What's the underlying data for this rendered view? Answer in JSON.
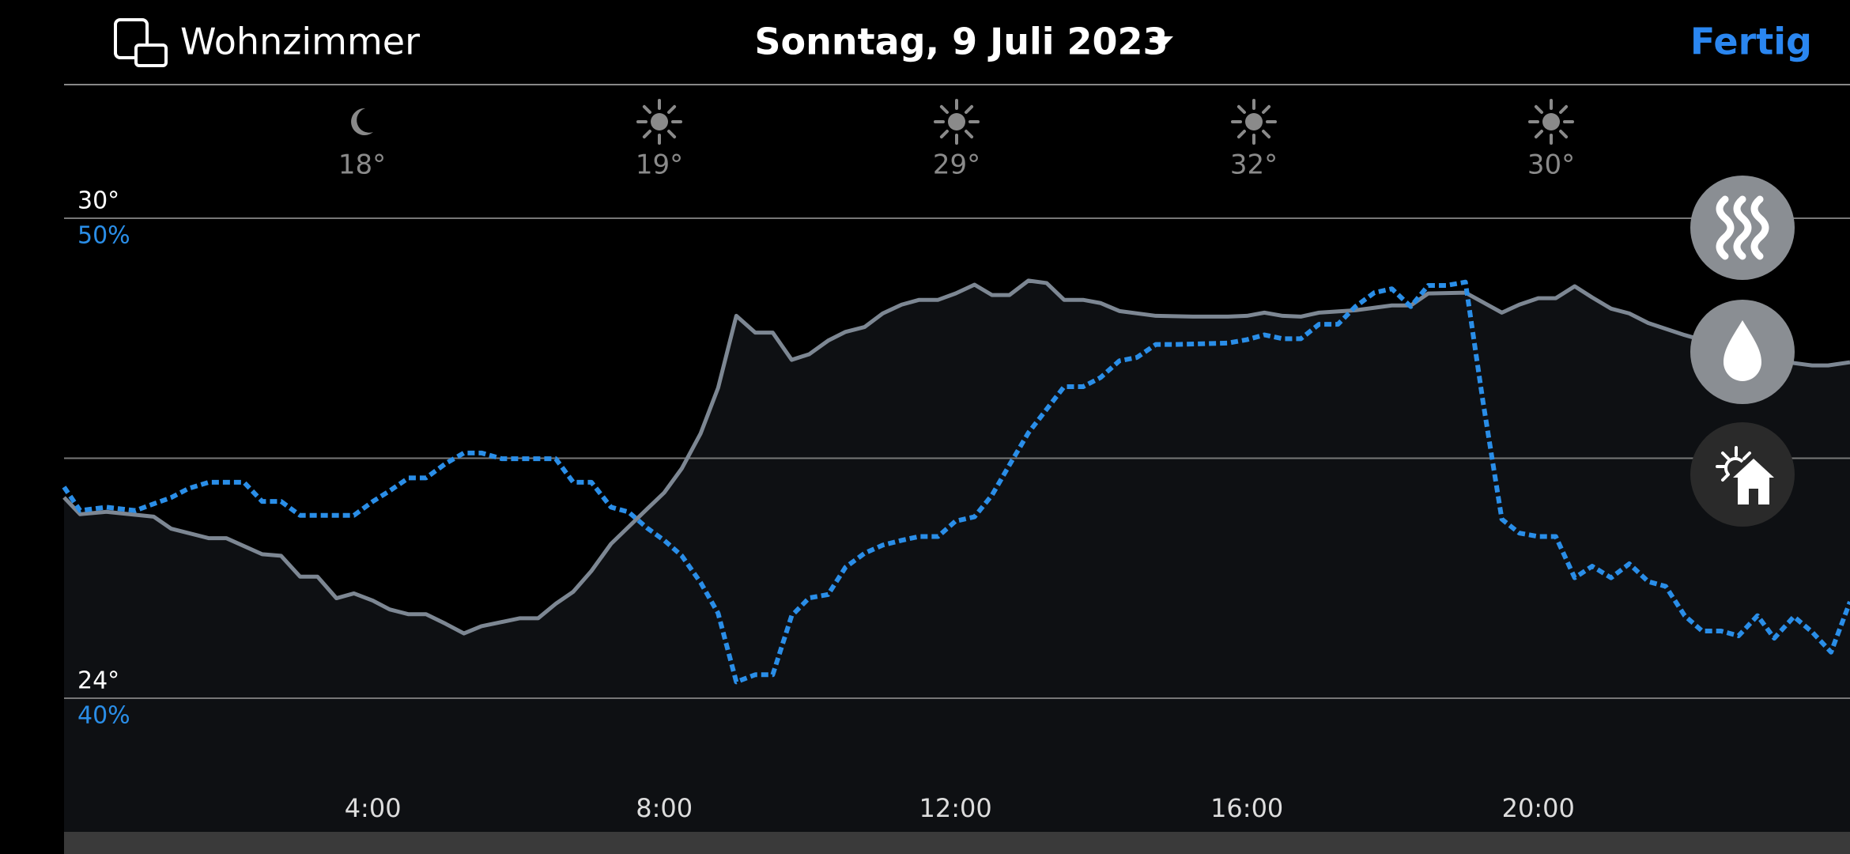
{
  "header": {
    "room": "Wohnzimmer",
    "date": "Sonntag, 9 Juli 2023",
    "done": "Fertig"
  },
  "forecast": [
    {
      "icon": "moon",
      "temp": "18°"
    },
    {
      "icon": "sun",
      "temp": "19°"
    },
    {
      "icon": "sun",
      "temp": "29°"
    },
    {
      "icon": "sun",
      "temp": "32°"
    },
    {
      "icon": "sun",
      "temp": "30°"
    }
  ],
  "chart_data": {
    "type": "line",
    "xlim": [
      -0.24,
      24.28
    ],
    "xticks": [
      {
        "value": 4,
        "label": "4:00"
      },
      {
        "value": 8,
        "label": "8:00"
      },
      {
        "value": 12,
        "label": "12:00"
      },
      {
        "value": 16,
        "label": "16:00"
      },
      {
        "value": 20,
        "label": "20:00"
      }
    ],
    "ylim": [
      24,
      30
    ],
    "yticks": [
      {
        "value": 24,
        "label": "24°"
      },
      {
        "value": 27,
        "label": null
      },
      {
        "value": 30,
        "label": "30°"
      }
    ],
    "y2lim": [
      40,
      50
    ],
    "y2ticks": [
      {
        "value": 40,
        "label": "40%"
      },
      {
        "value": 50,
        "label": "50%"
      }
    ],
    "grid": true,
    "series": [
      {
        "color": "#7d8793",
        "area": true,
        "x": [
          -0.24,
          -0.02,
          0.34,
          0.99,
          1.23,
          1.75,
          1.99,
          2.48,
          2.74,
          3.0,
          3.24,
          3.5,
          3.74,
          4.0,
          4.23,
          4.49,
          4.73,
          5.0,
          5.25,
          5.49,
          6.02,
          6.27,
          6.51,
          6.75,
          7.0,
          7.27,
          7.77,
          8.0,
          8.24,
          8.5,
          8.74,
          8.99,
          9.25,
          9.49,
          9.75,
          9.99,
          10.25,
          10.49,
          10.75,
          11.0,
          11.26,
          11.5,
          11.76,
          12.0,
          12.26,
          12.5,
          12.74,
          13.0,
          13.25,
          13.49,
          13.75,
          13.99,
          14.25,
          14.75,
          15.26,
          15.74,
          16.0,
          16.24,
          16.49,
          16.74,
          16.99,
          17.49,
          17.99,
          18.25,
          18.49,
          19.0,
          19.24,
          19.5,
          19.74,
          20.0,
          20.24,
          20.5,
          20.74,
          21.0,
          21.25,
          21.51,
          22.01,
          22.51,
          23.01,
          23.51,
          23.76,
          23.98,
          24.28
        ],
        "values": [
          26.51,
          26.3,
          26.33,
          26.27,
          26.12,
          26.0,
          26.0,
          25.8,
          25.78,
          25.52,
          25.52,
          25.25,
          25.31,
          25.22,
          25.11,
          25.05,
          25.05,
          24.93,
          24.81,
          24.9,
          25.0,
          25.0,
          25.18,
          25.33,
          25.59,
          25.93,
          26.37,
          26.57,
          26.87,
          27.31,
          27.88,
          28.78,
          28.57,
          28.57,
          28.23,
          28.3,
          28.47,
          28.58,
          28.64,
          28.81,
          28.92,
          28.98,
          28.98,
          29.06,
          29.17,
          29.04,
          29.04,
          29.22,
          29.19,
          28.98,
          28.98,
          28.94,
          28.84,
          28.78,
          28.77,
          28.77,
          28.78,
          28.82,
          28.78,
          28.77,
          28.82,
          28.85,
          28.91,
          28.91,
          29.06,
          29.07,
          28.95,
          28.82,
          28.92,
          29.0,
          29.0,
          29.15,
          29.01,
          28.87,
          28.81,
          28.69,
          28.54,
          28.41,
          28.35,
          28.19,
          28.16,
          28.16,
          28.2
        ]
      },
      {
        "color": "#2a8ee8",
        "axis": "y2",
        "dashed": true,
        "x": [
          -0.24,
          -0.02,
          0.34,
          0.74,
          0.99,
          1.23,
          1.47,
          1.75,
          2.23,
          2.48,
          2.74,
          3.0,
          3.74,
          4.0,
          4.23,
          4.49,
          4.73,
          5.0,
          5.25,
          5.49,
          5.77,
          6.51,
          6.75,
          7.0,
          7.27,
          7.51,
          7.77,
          8.0,
          8.24,
          8.5,
          8.74,
          8.99,
          9.25,
          9.49,
          9.75,
          9.99,
          10.25,
          10.49,
          10.75,
          11.0,
          11.26,
          11.5,
          11.76,
          12.0,
          12.26,
          12.5,
          12.74,
          13.0,
          13.25,
          13.49,
          13.75,
          13.99,
          14.25,
          14.49,
          14.75,
          15.0,
          15.74,
          16.0,
          16.24,
          16.49,
          16.74,
          16.99,
          17.25,
          17.49,
          17.75,
          17.99,
          18.25,
          18.49,
          18.74,
          19.0,
          19.24,
          19.5,
          19.74,
          20.0,
          20.24,
          20.5,
          20.74,
          21.0,
          21.25,
          21.51,
          21.75,
          22.01,
          22.25,
          22.51,
          22.75,
          23.01,
          23.24,
          23.51,
          23.76,
          24.02,
          24.28
        ],
        "values": [
          44.4,
          43.91,
          43.98,
          43.91,
          44.05,
          44.18,
          44.37,
          44.5,
          44.5,
          44.1,
          44.1,
          43.81,
          43.81,
          44.1,
          44.32,
          44.59,
          44.59,
          44.89,
          45.11,
          45.11,
          44.99,
          44.99,
          44.5,
          44.5,
          43.98,
          43.88,
          43.54,
          43.29,
          42.97,
          42.41,
          41.77,
          40.34,
          40.49,
          40.49,
          41.72,
          42.09,
          42.16,
          42.73,
          43.02,
          43.19,
          43.29,
          43.37,
          43.37,
          43.69,
          43.78,
          44.23,
          44.86,
          45.53,
          46.02,
          46.49,
          46.49,
          46.68,
          47.03,
          47.1,
          47.37,
          47.37,
          47.4,
          47.47,
          47.57,
          47.49,
          47.49,
          47.79,
          47.79,
          48.16,
          48.45,
          48.53,
          48.16,
          48.6,
          48.6,
          48.67,
          46.19,
          43.73,
          43.44,
          43.37,
          43.37,
          42.51,
          42.75,
          42.51,
          42.8,
          42.43,
          42.33,
          41.72,
          41.4,
          41.4,
          41.3,
          41.72,
          41.25,
          41.7,
          41.38,
          40.96,
          42.01
        ]
      }
    ]
  }
}
